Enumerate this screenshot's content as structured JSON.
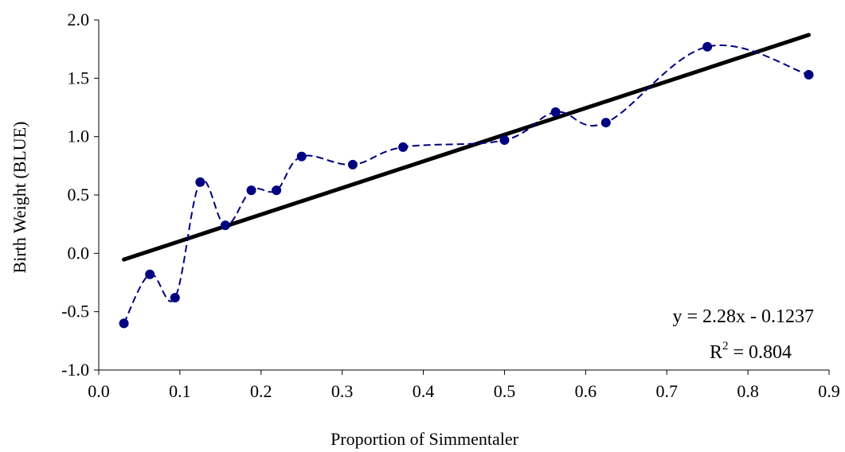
{
  "chart_data": {
    "type": "scatter",
    "xlabel": "Proportion of Simmentaler",
    "ylabel": "Birth Weight (BLUE)",
    "xlim": [
      0.0,
      0.9
    ],
    "ylim": [
      -1.0,
      2.0
    ],
    "x_ticks": [
      "0.0",
      "0.1",
      "0.2",
      "0.3",
      "0.4",
      "0.5",
      "0.6",
      "0.7",
      "0.8",
      "0.9"
    ],
    "y_ticks": [
      "-1.0",
      "-0.5",
      "0.0",
      "0.5",
      "1.0",
      "1.5",
      "2.0"
    ],
    "grid": false,
    "series": [
      {
        "style": "markers-with-smoothed-dashed-line",
        "color": "#000080",
        "points": [
          {
            "x": 0.031,
            "y": -0.6
          },
          {
            "x": 0.063,
            "y": -0.18
          },
          {
            "x": 0.094,
            "y": -0.38
          },
          {
            "x": 0.125,
            "y": 0.61
          },
          {
            "x": 0.156,
            "y": 0.24
          },
          {
            "x": 0.188,
            "y": 0.54
          },
          {
            "x": 0.219,
            "y": 0.54
          },
          {
            "x": 0.25,
            "y": 0.83
          },
          {
            "x": 0.313,
            "y": 0.76
          },
          {
            "x": 0.375,
            "y": 0.91
          },
          {
            "x": 0.5,
            "y": 0.97
          },
          {
            "x": 0.563,
            "y": 1.21
          },
          {
            "x": 0.625,
            "y": 1.12
          },
          {
            "x": 0.75,
            "y": 1.77
          },
          {
            "x": 0.875,
            "y": 1.53
          }
        ]
      }
    ],
    "trendline": {
      "slope": 2.28,
      "intercept": -0.1237,
      "x_range": [
        0.031,
        0.875
      ],
      "color": "#000000"
    },
    "equation_text": "y = 2.28x - 0.1237",
    "r2_label": "R",
    "r2_superscript": "2",
    "r2_value_text": " = 0.804"
  }
}
